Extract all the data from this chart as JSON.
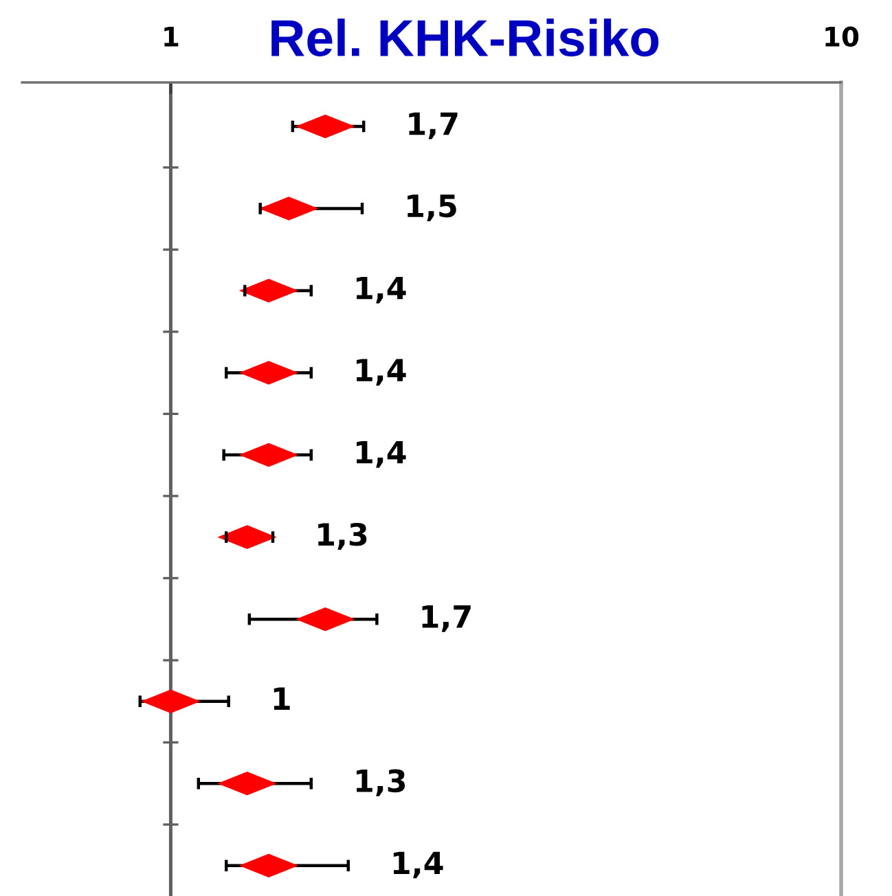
{
  "chart_data": {
    "type": "scatter",
    "title": "Rel. KHK-Risiko",
    "orientation": "horizontal",
    "log": "x",
    "xlim": [
      0.6,
      10
    ],
    "xticks": [
      1,
      10
    ],
    "marker": "diamond",
    "categories": [
      null,
      null,
      null,
      null,
      null,
      null,
      null,
      null,
      null,
      null
    ],
    "ref_lines": [
      {
        "axis": "x",
        "value": 1
      }
    ],
    "series": [
      {
        "color": "#ff0000",
        "values": [
          1.7,
          1.5,
          1.4,
          1.4,
          1.4,
          1.3,
          1.7,
          1.0,
          1.3,
          1.4
        ],
        "errors": [
          [
            1.52,
            1.94
          ],
          [
            1.36,
            1.93
          ],
          [
            1.29,
            1.62
          ],
          [
            1.21,
            1.62
          ],
          [
            1.2,
            1.62
          ],
          [
            1.21,
            1.42
          ],
          [
            1.31,
            2.03
          ],
          [
            0.9,
            1.22
          ],
          [
            1.1,
            1.62
          ],
          [
            1.21,
            1.84
          ]
        ],
        "value_labels": [
          "1,7",
          "1,5",
          "1,4",
          "1,4",
          "1,4",
          "1,3",
          "1,7",
          "1",
          "1,3",
          "1,4"
        ]
      }
    ]
  }
}
